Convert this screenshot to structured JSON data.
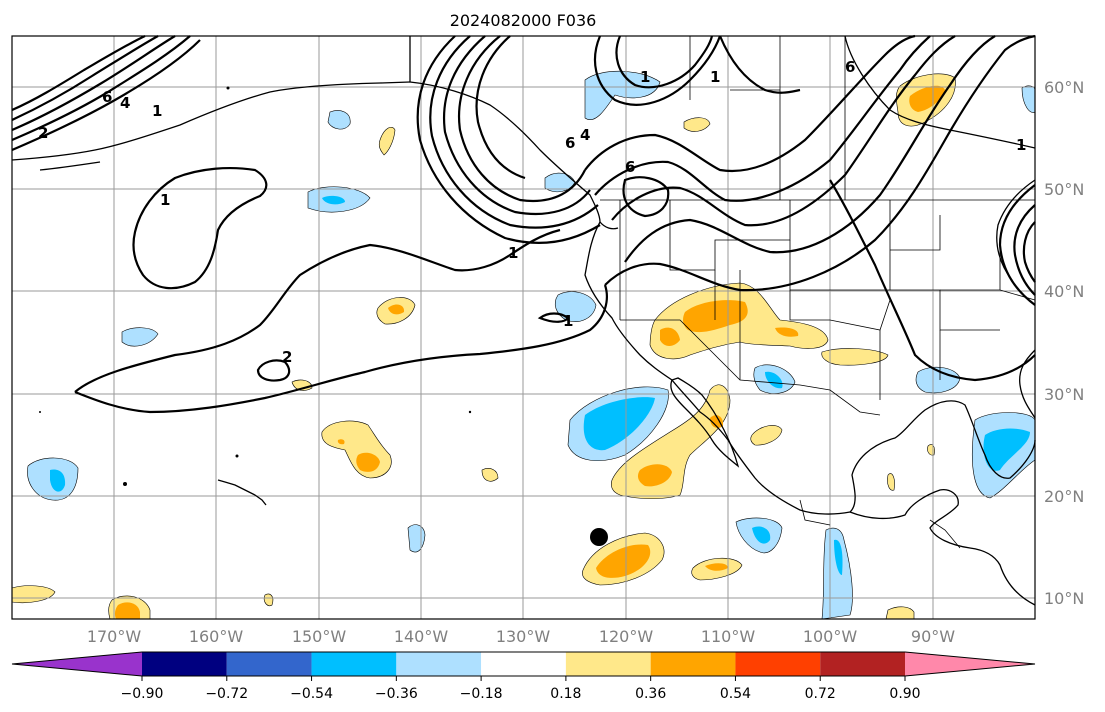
{
  "title": "2024082000 F036",
  "lat_labels": [
    "60°N",
    "50°N",
    "40°N",
    "30°N",
    "20°N",
    "10°N"
  ],
  "lon_labels": [
    "170°W",
    "160°W",
    "150°W",
    "140°W",
    "130°W",
    "120°W",
    "110°W",
    "100°W",
    "90°W"
  ],
  "colorbar": {
    "tick_labels": [
      "−0.90",
      "−0.72",
      "−0.54",
      "−0.36",
      "−0.18",
      "0.18",
      "0.36",
      "0.54",
      "0.72",
      "0.90"
    ],
    "colors": [
      "#9933cc",
      "#000080",
      "#3366cc",
      "#00bfff",
      "#aee0ff",
      "#ffffff",
      "#ffe88a",
      "#ffa500",
      "#ff4000",
      "#b22222",
      "#ff88aa"
    ]
  },
  "contour_labels": [
    "6",
    "4",
    "1",
    "2",
    "6",
    "4",
    "1",
    "1",
    "2",
    "1",
    "6",
    "1",
    "1",
    "6",
    "1"
  ],
  "colors": {
    "light_blue": "#aee0ff",
    "blue": "#00bfff",
    "light_yellow": "#ffe88a",
    "orange": "#ffa500",
    "gridline": "#9a9a9a"
  }
}
